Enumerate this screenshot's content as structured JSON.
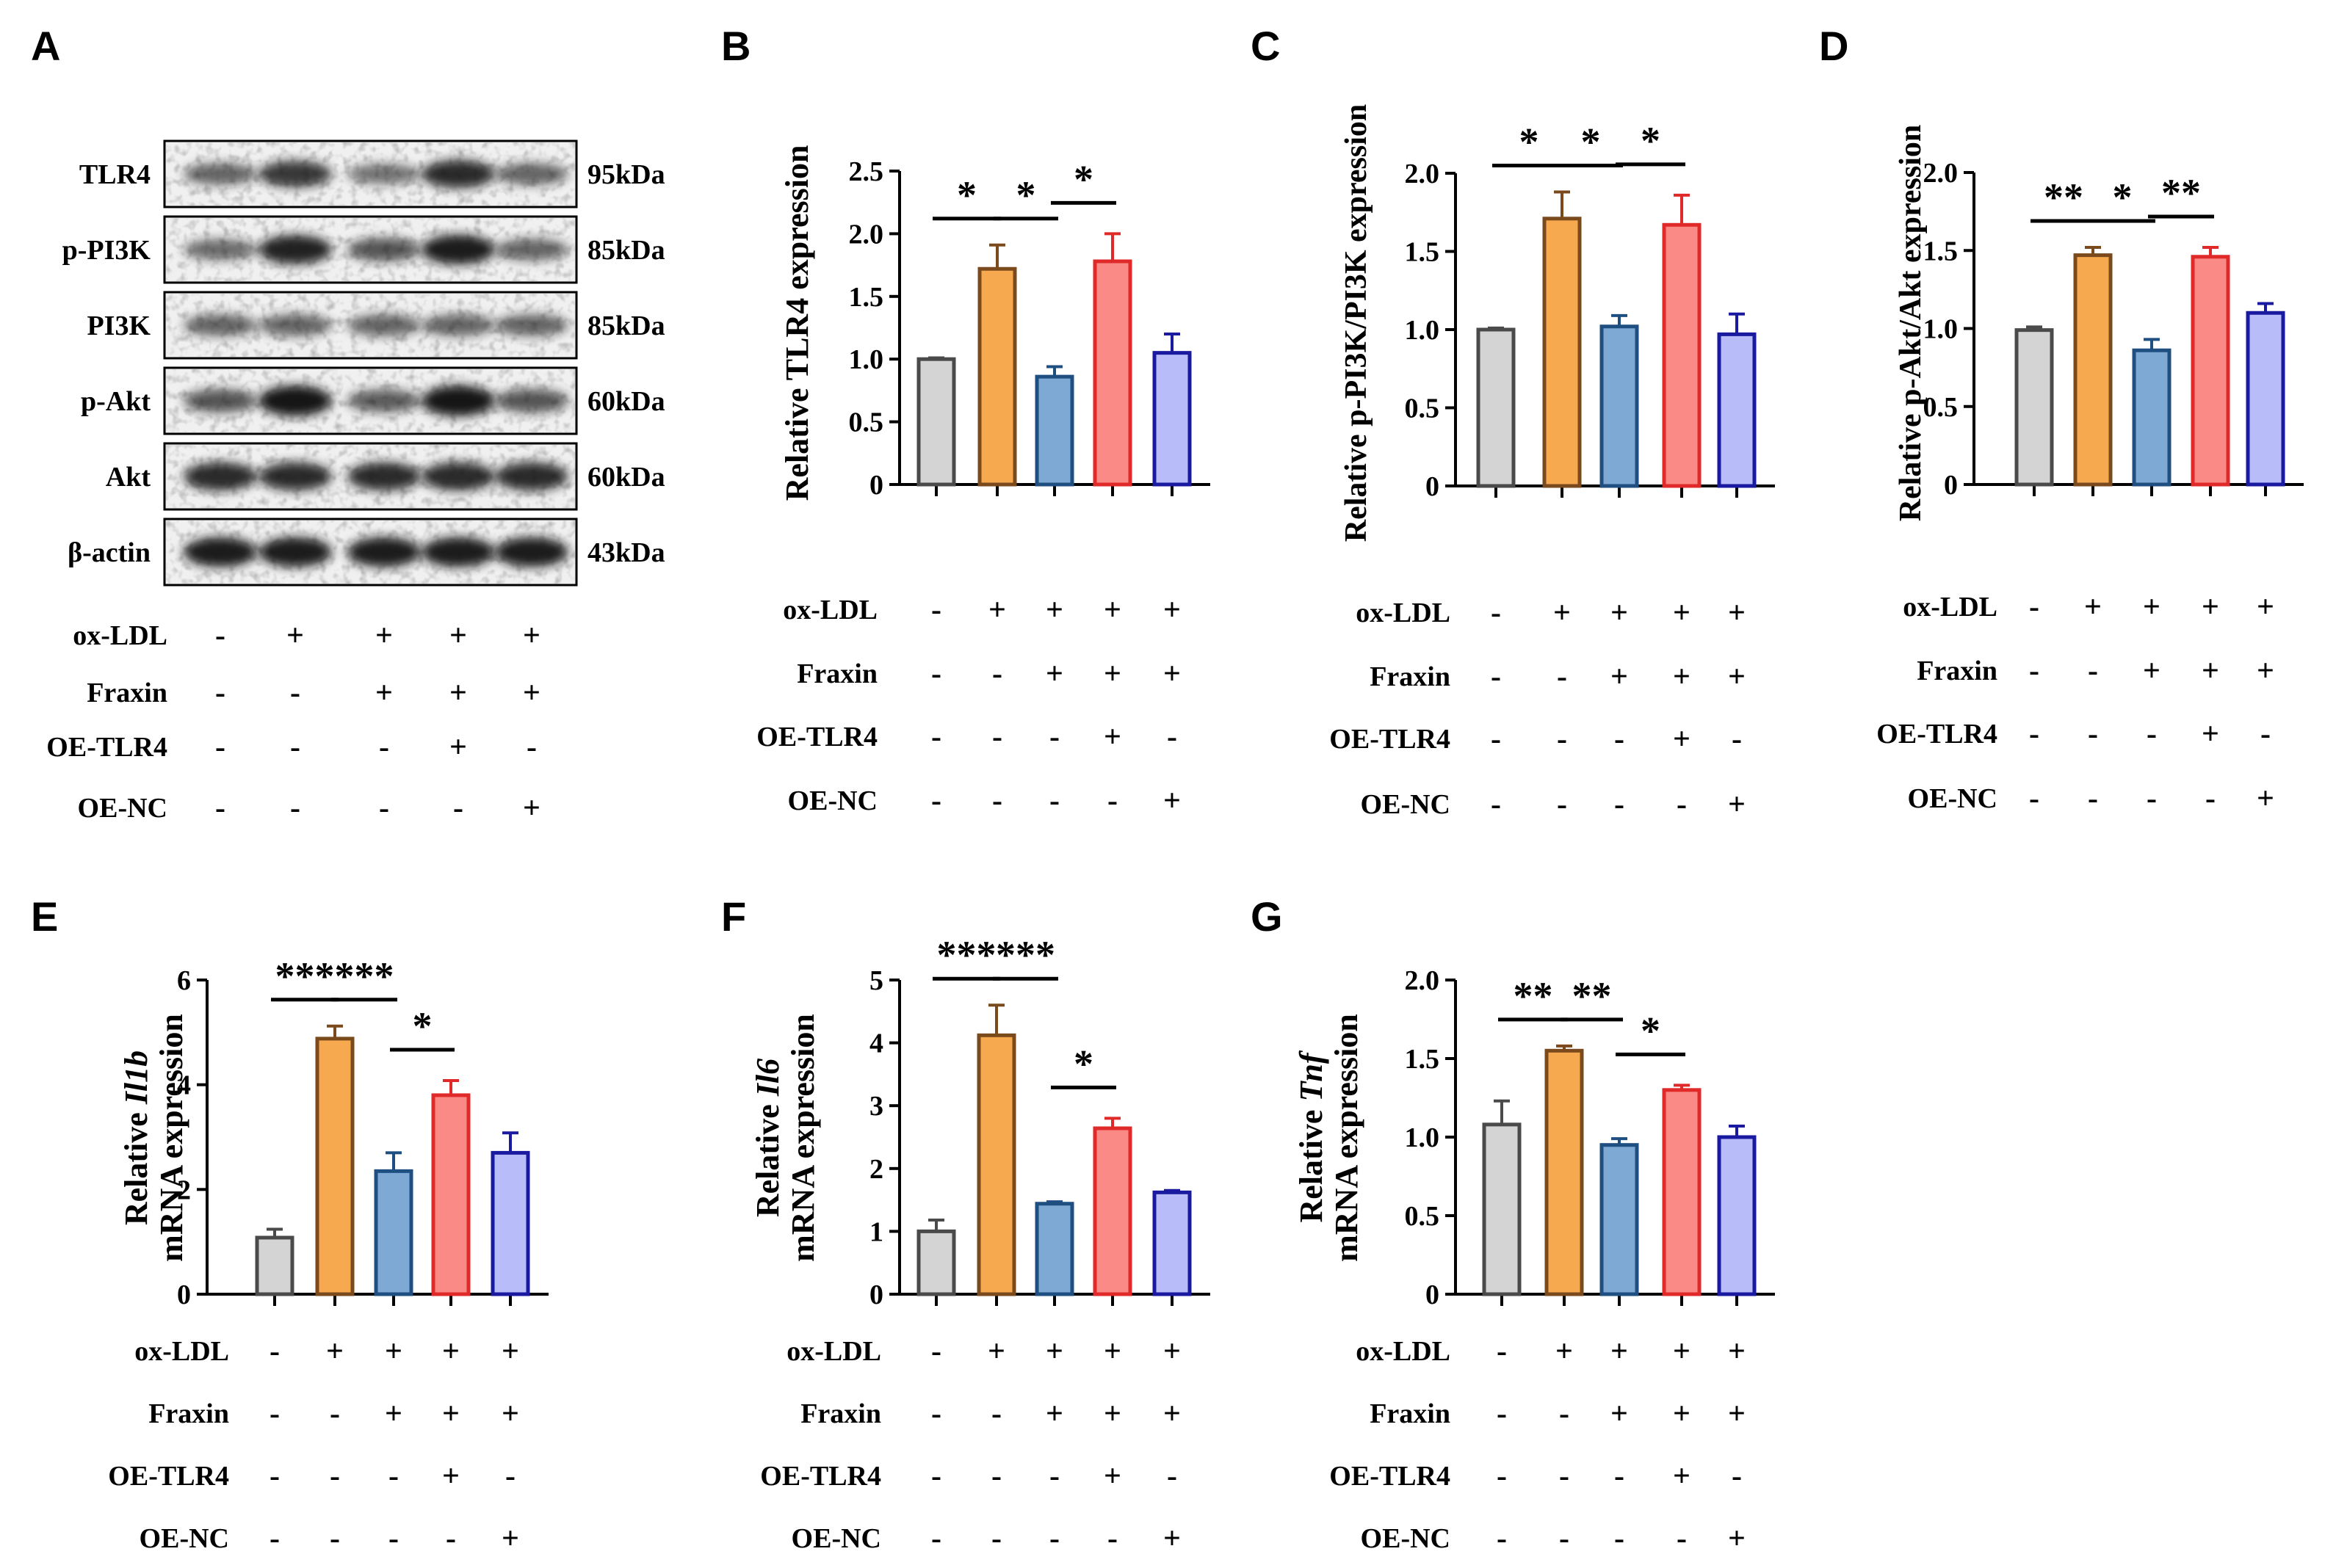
{
  "figure": {
    "panel_letters": [
      "A",
      "B",
      "C",
      "D",
      "E",
      "F",
      "G"
    ]
  },
  "colors": {
    "control": {
      "fill": "#d4d4d4",
      "stroke": "#4a4a4a"
    },
    "ox_ldl": {
      "fill": "#f6a94f",
      "stroke": "#7a4a1c"
    },
    "fraxin": {
      "fill": "#7ea9d4",
      "stroke": "#1f4f80"
    },
    "oe_tlr4": {
      "fill": "#fa8a86",
      "stroke": "#e02a2a"
    },
    "oe_nc": {
      "fill": "#b8bcf8",
      "stroke": "#1a1aa0"
    }
  },
  "treatment_rows": [
    {
      "label": "ox-LDL",
      "signs": [
        "-",
        "+",
        "+",
        "+",
        "+"
      ]
    },
    {
      "label": "Fraxin",
      "signs": [
        "-",
        "-",
        "+",
        "+",
        "+"
      ]
    },
    {
      "label": "OE-TLR4",
      "signs": [
        "-",
        "-",
        "-",
        "+",
        "-"
      ]
    },
    {
      "label": "OE-NC",
      "signs": [
        "-",
        "-",
        "-",
        "-",
        "+"
      ]
    }
  ],
  "blot": {
    "proteins": [
      "TLR4",
      "p-PI3K",
      "PI3K",
      "p-Akt",
      "Akt",
      "β-actin"
    ],
    "sizes": [
      "95kDa",
      "85kDa",
      "85kDa",
      "60kDa",
      "60kDa",
      "43kDa"
    ]
  },
  "chart_data": [
    {
      "panel": "B",
      "type": "bar",
      "ylabel_parts": [
        {
          "text": "Relative TLR4 expression",
          "italic": false
        }
      ],
      "ylim": [
        0,
        2.5
      ],
      "ticks": [
        0,
        0.5,
        1.0,
        1.5,
        2.0,
        2.5
      ],
      "tick_labels": [
        "0",
        "0.5",
        "1.0",
        "1.5",
        "2.0",
        "2.5"
      ],
      "values": [
        1.0,
        1.72,
        0.86,
        1.78,
        1.05
      ],
      "errors": [
        0.01,
        0.19,
        0.08,
        0.22,
        0.15
      ],
      "significance": [
        {
          "from": 0,
          "to": 1,
          "label": "*"
        },
        {
          "from": 1,
          "to": 2,
          "label": "*"
        },
        {
          "from": 2,
          "to": 3,
          "label": "*"
        }
      ]
    },
    {
      "panel": "C",
      "type": "bar",
      "ylabel_parts": [
        {
          "text": "Relative p-PI3K/PI3K expression",
          "italic": false
        }
      ],
      "ylim": [
        0,
        2.0
      ],
      "ticks": [
        0,
        0.5,
        1.0,
        1.5,
        2.0
      ],
      "tick_labels": [
        "0",
        "0.5",
        "1.0",
        "1.5",
        "2.0"
      ],
      "values": [
        1.0,
        1.71,
        1.02,
        1.67,
        0.97
      ],
      "errors": [
        0.01,
        0.17,
        0.07,
        0.19,
        0.13
      ],
      "significance": [
        {
          "from": 0,
          "to": 1,
          "label": "*"
        },
        {
          "from": 1,
          "to": 2,
          "label": "*"
        },
        {
          "from": 2,
          "to": 3,
          "label": "*"
        }
      ]
    },
    {
      "panel": "D",
      "type": "bar",
      "ylabel_parts": [
        {
          "text": "Relative p-Akt/Akt expression",
          "italic": false
        }
      ],
      "ylim": [
        0,
        2.0
      ],
      "ticks": [
        0,
        0.5,
        1.0,
        1.5,
        2.0
      ],
      "tick_labels": [
        "0",
        "0.5",
        "1.0",
        "1.5",
        "2.0"
      ],
      "values": [
        0.99,
        1.47,
        0.86,
        1.46,
        1.1
      ],
      "errors": [
        0.02,
        0.05,
        0.07,
        0.06,
        0.06
      ],
      "significance": [
        {
          "from": 0,
          "to": 1,
          "label": "**"
        },
        {
          "from": 1,
          "to": 2,
          "label": "*"
        },
        {
          "from": 2,
          "to": 3,
          "label": "**"
        }
      ]
    },
    {
      "panel": "E",
      "type": "bar",
      "ylabel_parts": [
        {
          "text": "Relative ",
          "italic": false
        },
        {
          "text": "Il1b",
          "italic": true
        }
      ],
      "ylabel_line2": "mRNA expression",
      "ylim": [
        0,
        6
      ],
      "ticks": [
        0,
        2,
        4,
        6
      ],
      "tick_labels": [
        "0",
        "2",
        "4",
        "6"
      ],
      "values": [
        1.08,
        4.88,
        2.35,
        3.8,
        2.7
      ],
      "errors": [
        0.16,
        0.24,
        0.35,
        0.28,
        0.38
      ],
      "significance": [
        {
          "from": 0,
          "to": 1,
          "label": "***"
        },
        {
          "from": 1,
          "to": 2,
          "label": "***"
        },
        {
          "from": 2,
          "to": 3,
          "label": "*"
        }
      ]
    },
    {
      "panel": "F",
      "type": "bar",
      "ylabel_parts": [
        {
          "text": "Relative ",
          "italic": false
        },
        {
          "text": "Il6",
          "italic": true
        }
      ],
      "ylabel_line2": "mRNA expression",
      "ylim": [
        0,
        5
      ],
      "ticks": [
        0,
        1,
        2,
        3,
        4,
        5
      ],
      "tick_labels": [
        "0",
        "1",
        "2",
        "3",
        "4",
        "5"
      ],
      "values": [
        1.0,
        4.12,
        1.44,
        2.64,
        1.62
      ],
      "errors": [
        0.18,
        0.48,
        0.03,
        0.16,
        0.03
      ],
      "significance": [
        {
          "from": 0,
          "to": 1,
          "label": "***"
        },
        {
          "from": 1,
          "to": 2,
          "label": "***"
        },
        {
          "from": 2,
          "to": 3,
          "label": "*"
        }
      ]
    },
    {
      "panel": "G",
      "type": "bar",
      "ylabel_parts": [
        {
          "text": "Relative ",
          "italic": false
        },
        {
          "text": "Tnf",
          "italic": true
        }
      ],
      "ylabel_line2": "mRNA expression",
      "ylim": [
        0,
        2.0
      ],
      "ticks": [
        0,
        0.5,
        1.0,
        1.5,
        2.0
      ],
      "tick_labels": [
        "0",
        "0.5",
        "1.0",
        "1.5",
        "2.0"
      ],
      "values": [
        1.08,
        1.55,
        0.95,
        1.3,
        1.0
      ],
      "errors": [
        0.15,
        0.03,
        0.04,
        0.03,
        0.07
      ],
      "significance": [
        {
          "from": 0,
          "to": 1,
          "label": "**"
        },
        {
          "from": 1,
          "to": 2,
          "label": "**"
        },
        {
          "from": 2,
          "to": 3,
          "label": "*"
        }
      ]
    }
  ]
}
